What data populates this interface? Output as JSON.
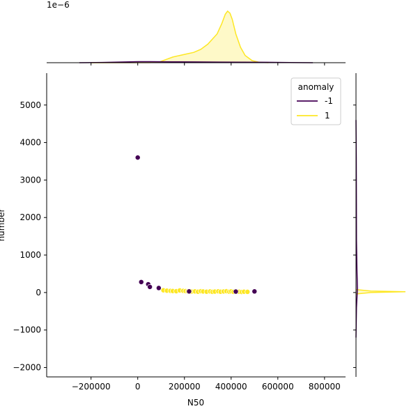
{
  "chart_data": {
    "type": "scatter",
    "title": "",
    "xlabel": "N50",
    "ylabel": "number",
    "xlim": [
      -390000,
      890000
    ],
    "ylim": [
      -2250,
      5850
    ],
    "x_ticks": [
      -200000,
      0,
      200000,
      400000,
      600000,
      800000
    ],
    "x_tick_labels": [
      "−200000",
      "0",
      "200000",
      "400000",
      "600000",
      "800000"
    ],
    "y_ticks": [
      -2000,
      -1000,
      0,
      1000,
      2000,
      3000,
      4000,
      5000
    ],
    "y_tick_labels": [
      "−2000",
      "−1000",
      "0",
      "1000",
      "2000",
      "3000",
      "4000",
      "5000"
    ],
    "grid": false,
    "legend": {
      "title": "anomaly",
      "placement": "top-right",
      "entries": [
        {
          "label": "-1",
          "color": "#440154"
        },
        {
          "label": "1",
          "color": "#fde725"
        }
      ]
    },
    "series": [
      {
        "name": "1",
        "color": "#fde725",
        "points": [
          {
            "x": 110000,
            "y": 60
          },
          {
            "x": 125000,
            "y": 50
          },
          {
            "x": 140000,
            "y": 45
          },
          {
            "x": 150000,
            "y": 40
          },
          {
            "x": 165000,
            "y": 35
          },
          {
            "x": 180000,
            "y": 55
          },
          {
            "x": 195000,
            "y": 45
          },
          {
            "x": 205000,
            "y": 38
          },
          {
            "x": 215000,
            "y": 30
          },
          {
            "x": 230000,
            "y": 25
          },
          {
            "x": 245000,
            "y": 30
          },
          {
            "x": 258000,
            "y": 20
          },
          {
            "x": 270000,
            "y": 35
          },
          {
            "x": 280000,
            "y": 28
          },
          {
            "x": 295000,
            "y": 22
          },
          {
            "x": 310000,
            "y": 30
          },
          {
            "x": 320000,
            "y": 18
          },
          {
            "x": 330000,
            "y": 25
          },
          {
            "x": 345000,
            "y": 32
          },
          {
            "x": 355000,
            "y": 20
          },
          {
            "x": 368000,
            "y": 28
          },
          {
            "x": 380000,
            "y": 35
          },
          {
            "x": 392000,
            "y": 22
          },
          {
            "x": 400000,
            "y": 30
          },
          {
            "x": 410000,
            "y": 18
          },
          {
            "x": 425000,
            "y": 25
          },
          {
            "x": 435000,
            "y": 20
          },
          {
            "x": 445000,
            "y": 15
          },
          {
            "x": 455000,
            "y": 22
          },
          {
            "x": 470000,
            "y": 18
          }
        ]
      },
      {
        "name": "-1",
        "color": "#440154",
        "points": [
          {
            "x": 0,
            "y": 3600
          },
          {
            "x": 15000,
            "y": 280
          },
          {
            "x": 45000,
            "y": 220
          },
          {
            "x": 52000,
            "y": 150
          },
          {
            "x": 90000,
            "y": 120
          },
          {
            "x": 220000,
            "y": 30
          },
          {
            "x": 420000,
            "y": 25
          },
          {
            "x": 500000,
            "y": 30
          }
        ]
      }
    ],
    "marginal_x": {
      "type": "kde",
      "offset_label": "1e−6",
      "series": [
        {
          "name": "1",
          "color": "#fde725",
          "x": [
            -200000,
            50000,
            90000,
            120000,
            150000,
            180000,
            210000,
            240000,
            270000,
            300000,
            320000,
            340000,
            360000,
            375000,
            385000,
            395000,
            405000,
            420000,
            440000,
            460000,
            490000,
            520000,
            560000
          ],
          "density": [
            0,
            0.01,
            0.1,
            0.6,
            1.1,
            1.4,
            1.7,
            2.0,
            2.6,
            3.6,
            4.6,
            5.6,
            7.6,
            9.4,
            10.0,
            9.6,
            8.4,
            5.6,
            3.0,
            1.4,
            0.4,
            0.1,
            0
          ]
        },
        {
          "name": "-1",
          "color": "#440154",
          "x": [
            -250000,
            -150000,
            -50000,
            0,
            50000,
            150000,
            250000,
            350000,
            450000,
            550000,
            650000,
            750000
          ],
          "density": [
            0,
            0.05,
            0.15,
            0.2,
            0.2,
            0.18,
            0.15,
            0.12,
            0.1,
            0.08,
            0.04,
            0
          ]
        }
      ]
    },
    "marginal_y": {
      "type": "kde",
      "series": [
        {
          "name": "1",
          "color": "#fde725",
          "y": [
            -40,
            0,
            20,
            40,
            80
          ],
          "density": [
            0,
            0.3,
            1.0,
            0.3,
            0
          ]
        },
        {
          "name": "-1",
          "color": "#440154",
          "y": [
            -1200,
            -400,
            100,
            600,
            1400,
            2400,
            3600,
            4600
          ],
          "density": [
            0,
            0.01,
            0.03,
            0.02,
            0.01,
            0.008,
            0.005,
            0
          ]
        }
      ]
    }
  }
}
